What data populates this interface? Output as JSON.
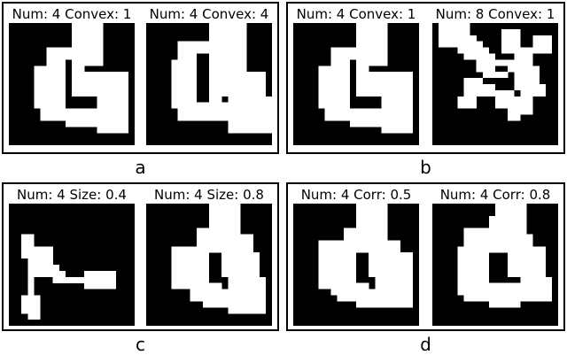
{
  "figure": {
    "background_color": "#ffffff",
    "ink_color": "#000000",
    "image_background": "#000000",
    "blob_fill": "#ffffff",
    "panels": [
      {
        "label": "a",
        "subplots": [
          {
            "title": "Num: 4 Convex: 1",
            "grid": [
              "00000000001111100000",
              "00000000001111100000",
              "00000000001111100000",
              "00000000001111100000",
              "00000011111111100000",
              "00000011111111100000",
              "00000011101111100000",
              "00001111101100000000",
              "00001111101111111110",
              "00001111101111111110",
              "00001111101111111110",
              "00001111101111111110",
              "00001111100000111110",
              "00001111100000111110",
              "00000111111111111110",
              "00000111111111111110",
              "00000000011111111110",
              "00000000000000111110",
              "00000000000000000000",
              "00000000000000000000"
            ]
          },
          {
            "title": "Num: 4 Convex: 4",
            "grid": [
              "00000000001111110000",
              "00000000001111110000",
              "00000000001111110000",
              "00000111111111110000",
              "00000111111111110000",
              "00000111001111110000",
              "00001111001111110000",
              "00001111001111110000",
              "00001111001111111110",
              "00001111001111111110",
              "00001111001111111110",
              "00001111001111111110",
              "00001111001101111111",
              "00001111111111111111",
              "00000111111111111111",
              "00000111111111111111",
              "00000000000001111111",
              "00000000000001111111",
              "00000000000000000000",
              "00000000000000000000"
            ]
          }
        ]
      },
      {
        "label": "b",
        "subplots": [
          {
            "title": "Num: 4 Convex: 1",
            "grid": [
              "00000000001111100000",
              "00000000001111100000",
              "00000000001111100000",
              "00000000001111100000",
              "00000011111111100000",
              "00000011111111100000",
              "00000011101111100000",
              "00001111101100000000",
              "00001111101111111110",
              "00001111101111111110",
              "00001111101111111110",
              "00001111101111111110",
              "00001111100000111110",
              "00001111100000111110",
              "00000111111111111110",
              "00000111111111111110",
              "00000000011111111110",
              "00000000000000111110",
              "00000000000000000000",
              "00000000000000000000"
            ]
          },
          {
            "title": "Num: 8 Convex: 1",
            "grid": [
              "01111100000000000000",
              "01111100000111000000",
              "01111110000111001110",
              "01111111000111001110",
              "00001111100111111110",
              "00000111110001110000",
              "00000001111111110000",
              "00000001110011111000",
              "00000000111101111000",
              "00000111000001111000",
              "00000111110001111100",
              "00000111111110111100",
              "00001110001111110000",
              "00001110001111110000",
              "00000000000011110000",
              "00000000000011000000",
              "00000000000000000000",
              "00000000000000000000",
              "00000000000000000000",
              "00000000000000000000"
            ]
          }
        ]
      },
      {
        "label": "c",
        "subplots": [
          {
            "title": "Num: 4 Size: 0.4",
            "grid": [
              "00000000000000000000",
              "00000000000000000000",
              "00000000000000000000",
              "00000000000000000000",
              "00000000000000000000",
              "00110000000000000000",
              "00110000000000000000",
              "00111110000000000000",
              "00111110000000000000",
              "00011110000000000000",
              "00011111000000000000",
              "00011111100011111000",
              "00010001111111111000",
              "00010000000011111000",
              "00010000000000000000",
              "00111000000000000000",
              "00111000000000000000",
              "00111000000000000000",
              "00011000000000000000",
              "00000000000000000000"
            ]
          },
          {
            "title": "Num: 4 Size: 0.8",
            "grid": [
              "00000000001111100000",
              "00000000001111100000",
              "00000000001111100000",
              "00000000001111100000",
              "00000000111111100000",
              "00000000111111111000",
              "00000000111111111000",
              "00001111111111111000",
              "00001111110011111100",
              "00001111110011111100",
              "00001111110011111100",
              "00001111110011111100",
              "00001111110001111110",
              "00001111111101111110",
              "00000001111111111110",
              "00000001111111111110",
              "00000000011111111110",
              "00000000000001111110",
              "00000000000000000000",
              "00000000000000000000"
            ]
          }
        ]
      },
      {
        "label": "d",
        "subplots": [
          {
            "title": "Num: 4 Corr: 0.5",
            "grid": [
              "00000000001111100000",
              "00000000001111100000",
              "00000000001111100000",
              "00000000001111100000",
              "00000000111111100000",
              "00000000111111100000",
              "00001111111111111000",
              "00001111111111111000",
              "00001111110011111110",
              "00001111110011111110",
              "00001111110011111110",
              "00001111110011111110",
              "00001111110001111110",
              "00001111111101111110",
              "00000011111111111110",
              "00000001111111111110",
              "00000000001111111110",
              "00000000000000000000",
              "00000000000000000000",
              "00000000000000000000"
            ]
          },
          {
            "title": "Num: 4 Corr: 0.8",
            "grid": [
              "00000000001111100000",
              "00000000001111100000",
              "00000000011111100000",
              "00000000011111100000",
              "00000111111111100000",
              "00000111111111110000",
              "00000111111111110000",
              "00001111111111111100",
              "00001111100011111100",
              "00001111100011111100",
              "00001111100011111100",
              "00001111100011111100",
              "00001111100000111110",
              "00001111111111111110",
              "00001111111111111110",
              "00000111111111111110",
              "00000000011111000000",
              "00000000000000000000",
              "00000000000000000000",
              "00000000000000000000"
            ]
          }
        ]
      }
    ]
  }
}
